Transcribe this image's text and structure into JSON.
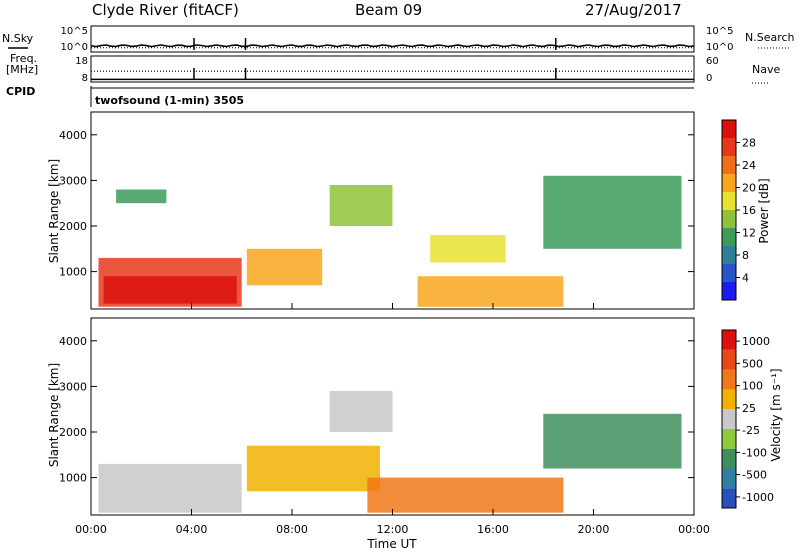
{
  "header": {
    "station": "Clyde River (fitACF)",
    "beam": "Beam 09",
    "date": "27/Aug/2017"
  },
  "left_labels": {
    "nsky": "N.Sky",
    "freq_line1": "Freq.",
    "freq_line2": "[MHz]",
    "cpid": "CPID"
  },
  "right_labels": {
    "nsearch": "N.Search",
    "nave": "Nave"
  },
  "cpid_text": "twofsound (1-min) 3505",
  "chart_data": [
    {
      "type": "line",
      "panel": "noise",
      "series": [
        {
          "name": "N.Sky",
          "style": "solid",
          "level_exp": 1.2
        },
        {
          "name": "N.Search",
          "style": "dotted",
          "level_exp": 1.1
        }
      ],
      "left_ticks": [
        "10^5",
        "10^0"
      ],
      "right_ticks": [
        "10^5",
        "10^0"
      ],
      "ylim_exp": [
        0,
        5
      ]
    },
    {
      "type": "line",
      "panel": "frequency",
      "series": [
        {
          "name": "Freq.",
          "style": "solid",
          "value": 9
        },
        {
          "name": "Nave",
          "style": "dotted",
          "value": 25
        }
      ],
      "left_ticks": [
        "18",
        "8"
      ],
      "right_ticks": [
        "60",
        "0"
      ],
      "ylim_left": [
        8,
        18
      ],
      "ylim_right": [
        0,
        60
      ]
    },
    {
      "type": "heatmap",
      "panel": "power",
      "ylabel": "Slant Range [km]",
      "yticks": [
        1000,
        2000,
        3000,
        4000
      ],
      "ylim": [
        180,
        4500
      ],
      "xlim": [
        0,
        24
      ],
      "colorbar": {
        "label": "Power [dB]",
        "ticks": [
          "4",
          "8",
          "12",
          "16",
          "20",
          "24",
          "28"
        ],
        "colors": [
          "#1c1cf0",
          "#2a55c8",
          "#2f7f9a",
          "#3c9b5a",
          "#8fc23a",
          "#e8e22e",
          "#f7a61f",
          "#f06e18",
          "#e8381a",
          "#dd1010"
        ]
      },
      "regions": [
        {
          "t0": 0.3,
          "t1": 6.0,
          "r0": 230,
          "r1": 1300,
          "level": 0.85
        },
        {
          "t0": 0.5,
          "t1": 5.8,
          "r0": 300,
          "r1": 900,
          "level": 0.97
        },
        {
          "t0": 6.2,
          "t1": 9.2,
          "r0": 700,
          "r1": 1500,
          "level": 0.68
        },
        {
          "t0": 13.0,
          "t1": 18.8,
          "r0": 230,
          "r1": 900,
          "level": 0.62
        },
        {
          "t0": 9.5,
          "t1": 12.0,
          "r0": 2000,
          "r1": 2900,
          "level": 0.45
        },
        {
          "t0": 13.5,
          "t1": 16.5,
          "r0": 1200,
          "r1": 1800,
          "level": 0.55
        },
        {
          "t0": 1.0,
          "t1": 3.0,
          "r0": 2500,
          "r1": 2800,
          "level": 0.35
        },
        {
          "t0": 18.0,
          "t1": 23.5,
          "r0": 1500,
          "r1": 3100,
          "level": 0.3
        }
      ]
    },
    {
      "type": "heatmap",
      "panel": "velocity",
      "ylabel": "Slant Range [km]",
      "yticks": [
        1000,
        2000,
        3000,
        4000
      ],
      "ylim": [
        180,
        4500
      ],
      "xlim": [
        0,
        24
      ],
      "xticks": [
        "00:00",
        "04:00",
        "08:00",
        "12:00",
        "16:00",
        "20:00",
        "00:00"
      ],
      "xlabel": "Time UT",
      "colorbar": {
        "label": "Velocity [m s⁻¹]",
        "ticks": [
          "1000",
          "500",
          "100",
          "25",
          "-25",
          "-100",
          "-500",
          "-1000"
        ],
        "colors": [
          "#2a4fb8",
          "#2e7fa0",
          "#3f8f5e",
          "#8ecb3a",
          "#c8c8c8",
          "#f2b000",
          "#f07818",
          "#e84818",
          "#dd1010"
        ]
      },
      "regions": [
        {
          "t0": 0.3,
          "t1": 6.0,
          "r0": 230,
          "r1": 1300,
          "level": 0.48
        },
        {
          "t0": 6.2,
          "t1": 11.5,
          "r0": 700,
          "r1": 1700,
          "level": 0.65
        },
        {
          "t0": 11.0,
          "t1": 18.8,
          "r0": 230,
          "r1": 1000,
          "level": 0.7
        },
        {
          "t0": 9.5,
          "t1": 12.0,
          "r0": 2000,
          "r1": 2900,
          "level": 0.48
        },
        {
          "t0": 18.0,
          "t1": 23.5,
          "r0": 1200,
          "r1": 2400,
          "level": 0.3
        }
      ]
    }
  ]
}
